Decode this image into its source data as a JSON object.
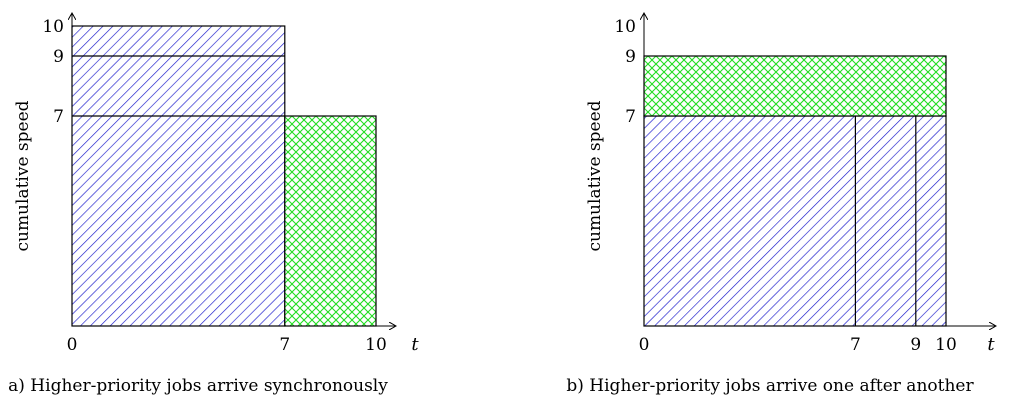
{
  "colors": {
    "blue_hatch": "#1a1acc",
    "green_hatch": "#22dd22",
    "axis": "#000000",
    "outline": "#000000"
  },
  "panels": [
    {
      "id": "a",
      "caption": "a) Higher-priority jobs arrive synchronously",
      "y_axis_label": "cumulative speed",
      "x_axis_var": "t",
      "x_ticks": [
        "0",
        "7",
        "10"
      ],
      "y_ticks": [
        "7",
        "9",
        "10"
      ],
      "x_range": [
        0,
        10
      ],
      "y_range": [
        0,
        10
      ],
      "regions": [
        {
          "name": "blue-block-full",
          "pattern": "blue",
          "x0": 0,
          "x1": 7,
          "y0": 0,
          "y1": 10
        },
        {
          "name": "green-block",
          "pattern": "green",
          "x0": 7,
          "x1": 10,
          "y0": 0,
          "y1": 7
        }
      ],
      "h_lines": [
        {
          "y": 9,
          "x0": 0,
          "x1": 7
        },
        {
          "y": 7,
          "x0": 0,
          "x1": 7
        }
      ],
      "v_lines": []
    },
    {
      "id": "b",
      "caption": "b) Higher-priority jobs arrive one after another",
      "y_axis_label": "cumulative speed",
      "x_axis_var": "t",
      "x_ticks": [
        "0",
        "7",
        "9",
        "10"
      ],
      "y_ticks": [
        "7",
        "9",
        "10"
      ],
      "x_range": [
        0,
        10
      ],
      "y_range": [
        0,
        10
      ],
      "regions": [
        {
          "name": "blue-block",
          "pattern": "blue",
          "x0": 0,
          "x1": 10,
          "y0": 0,
          "y1": 7
        },
        {
          "name": "green-block",
          "pattern": "green",
          "x0": 0,
          "x1": 10,
          "y0": 7,
          "y1": 9
        }
      ],
      "h_lines": [],
      "v_lines": [
        {
          "x": 7,
          "y0": 0,
          "y1": 7
        },
        {
          "x": 9,
          "y0": 0,
          "y1": 7
        }
      ]
    }
  ]
}
